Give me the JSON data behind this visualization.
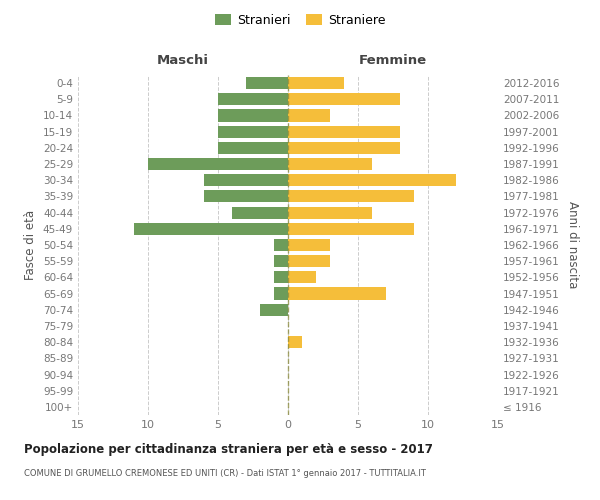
{
  "age_groups": [
    "100+",
    "95-99",
    "90-94",
    "85-89",
    "80-84",
    "75-79",
    "70-74",
    "65-69",
    "60-64",
    "55-59",
    "50-54",
    "45-49",
    "40-44",
    "35-39",
    "30-34",
    "25-29",
    "20-24",
    "15-19",
    "10-14",
    "5-9",
    "0-4"
  ],
  "birth_years": [
    "≤ 1916",
    "1917-1921",
    "1922-1926",
    "1927-1931",
    "1932-1936",
    "1937-1941",
    "1942-1946",
    "1947-1951",
    "1952-1956",
    "1957-1961",
    "1962-1966",
    "1967-1971",
    "1972-1976",
    "1977-1981",
    "1982-1986",
    "1987-1991",
    "1992-1996",
    "1997-2001",
    "2002-2006",
    "2007-2011",
    "2012-2016"
  ],
  "males": [
    0,
    0,
    0,
    0,
    0,
    0,
    2,
    1,
    1,
    1,
    1,
    11,
    4,
    6,
    6,
    10,
    5,
    5,
    5,
    5,
    3
  ],
  "females": [
    0,
    0,
    0,
    0,
    1,
    0,
    0,
    7,
    2,
    3,
    3,
    9,
    6,
    9,
    12,
    6,
    8,
    8,
    3,
    8,
    4
  ],
  "male_color": "#6d9c5a",
  "female_color": "#f5be3a",
  "title": "Popolazione per cittadinanza straniera per età e sesso - 2017",
  "subtitle": "COMUNE DI GRUMELLO CREMONESE ED UNITI (CR) - Dati ISTAT 1° gennaio 2017 - TUTTITALIA.IT",
  "xlabel_left": "Maschi",
  "xlabel_right": "Femmine",
  "ylabel_left": "Fasce di età",
  "ylabel_right": "Anni di nascita",
  "legend_male": "Stranieri",
  "legend_female": "Straniere",
  "xlim": 15,
  "background_color": "#ffffff",
  "grid_color": "#cccccc",
  "axis_label_color": "#555555",
  "tick_label_color": "#777777",
  "center_line_color": "#8a8a3a"
}
